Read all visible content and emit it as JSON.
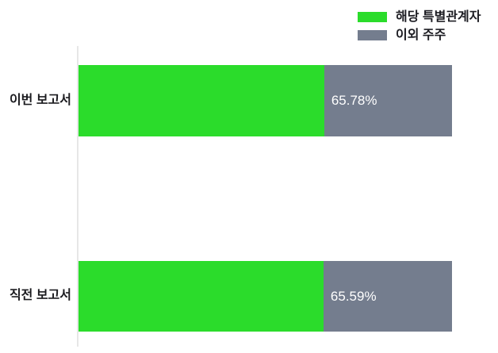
{
  "chart_data": {
    "type": "bar",
    "orientation": "horizontal",
    "stacked": true,
    "categories": [
      "이번 보고서",
      "직전 보고서"
    ],
    "series": [
      {
        "name": "해당 특별관계자",
        "color": "#2bdc2b",
        "values": [
          65.78,
          65.59
        ]
      },
      {
        "name": "이외 주주",
        "color": "#747d8e",
        "values": [
          34.22,
          34.41
        ]
      }
    ],
    "value_labels": [
      "65.78%",
      "65.59%"
    ],
    "value_label_meaning": "share of 해당 특별관계자",
    "xlim": [
      0,
      100
    ],
    "grid": false,
    "legend_position": "top-right",
    "axis_line_color": "#e7e7e7",
    "background_color": "#ffffff",
    "value_text_color": "#ffffff",
    "label_text_color": "#1b1b1f"
  },
  "legend": {
    "items": [
      {
        "label": "해당 특별관계자",
        "color": "#2bdc2b"
      },
      {
        "label": "이외 주주",
        "color": "#747d8e"
      }
    ]
  }
}
